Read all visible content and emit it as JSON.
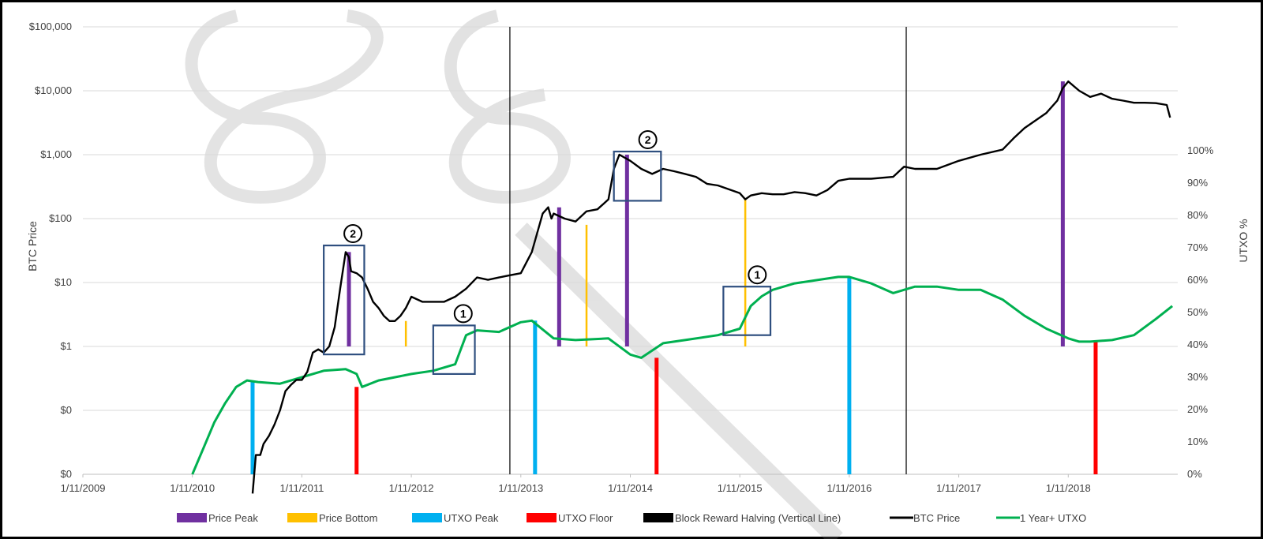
{
  "chart_data": {
    "type": "line",
    "left_axis": {
      "label": "BTC Price",
      "scale": "log",
      "tick_labels": [
        "$0",
        "$0",
        "$1",
        "$10",
        "$100",
        "$1,000",
        "$10,000",
        "$100,000"
      ],
      "range_log10": [
        -2,
        5
      ]
    },
    "right_axis": {
      "label": "UTXO %",
      "tick_labels": [
        "0%",
        "10%",
        "20%",
        "30%",
        "40%",
        "50%",
        "60%",
        "70%",
        "80%",
        "90%",
        "100%"
      ],
      "range": [
        0,
        100
      ]
    },
    "x_axis": {
      "tick_labels": [
        "1/11/2009",
        "1/11/2010",
        "1/11/2011",
        "1/11/2012",
        "1/11/2013",
        "1/11/2014",
        "1/11/2015",
        "1/11/2016",
        "1/11/2017",
        "1/11/2018"
      ],
      "range_year": [
        2009.0,
        2019.0
      ]
    },
    "series": [
      {
        "name": "BTC Price",
        "color": "#000000",
        "x": [
          2010.55,
          2010.58,
          2010.62,
          2010.65,
          2010.7,
          2010.75,
          2010.8,
          2010.85,
          2010.9,
          2010.95,
          2011.0,
          2011.05,
          2011.1,
          2011.15,
          2011.2,
          2011.25,
          2011.3,
          2011.35,
          2011.4,
          2011.43,
          2011.45,
          2011.5,
          2011.55,
          2011.6,
          2011.65,
          2011.7,
          2011.75,
          2011.8,
          2011.85,
          2011.9,
          2011.95,
          2012.0,
          2012.1,
          2012.2,
          2012.3,
          2012.4,
          2012.5,
          2012.6,
          2012.7,
          2012.8,
          2012.9,
          2013.0,
          2013.1,
          2013.2,
          2013.25,
          2013.28,
          2013.3,
          2013.4,
          2013.5,
          2013.6,
          2013.7,
          2013.8,
          2013.85,
          2013.9,
          2014.0,
          2014.1,
          2014.2,
          2014.3,
          2014.4,
          2014.5,
          2014.6,
          2014.7,
          2014.8,
          2015.0,
          2015.05,
          2015.1,
          2015.2,
          2015.3,
          2015.4,
          2015.5,
          2015.6,
          2015.7,
          2015.8,
          2015.9,
          2016.0,
          2016.2,
          2016.4,
          2016.5,
          2016.6,
          2016.8,
          2017.0,
          2017.2,
          2017.4,
          2017.5,
          2017.6,
          2017.8,
          2017.9,
          2017.95,
          2018.0,
          2018.1,
          2018.2,
          2018.3,
          2018.4,
          2018.5,
          2018.6,
          2018.7,
          2018.8,
          2018.9,
          2018.93
        ],
        "y": [
          0.005,
          0.02,
          0.02,
          0.03,
          0.04,
          0.06,
          0.1,
          0.2,
          0.25,
          0.3,
          0.3,
          0.4,
          0.8,
          0.9,
          0.8,
          1.0,
          2.0,
          8.0,
          30.0,
          25.0,
          15.0,
          14.0,
          12.0,
          8.0,
          5.0,
          4.0,
          3.0,
          2.5,
          2.5,
          3.0,
          4.0,
          6.0,
          5.0,
          5.0,
          5.0,
          6.0,
          8.0,
          12.0,
          11.0,
          12.0,
          13.0,
          14.0,
          30.0,
          120.0,
          150.0,
          100.0,
          120.0,
          100.0,
          90.0,
          130.0,
          140.0,
          200.0,
          600.0,
          1000.0,
          800.0,
          600.0,
          500.0,
          600.0,
          550.0,
          500.0,
          450.0,
          350.0,
          330.0,
          250.0,
          200.0,
          230.0,
          250.0,
          240.0,
          240.0,
          260.0,
          250.0,
          230.0,
          280.0,
          390.0,
          420.0,
          420.0,
          450.0,
          650.0,
          600.0,
          600.0,
          800.0,
          1000.0,
          1200.0,
          1800.0,
          2600.0,
          4500.0,
          7000.0,
          11000.0,
          14000.0,
          10000.0,
          8000.0,
          9000.0,
          7500.0,
          7000.0,
          6500.0,
          6500.0,
          6400.0,
          6000.0,
          3800.0
        ]
      },
      {
        "name": "1 Year+ UTXO",
        "color": "#00B050",
        "x": [
          2010.0,
          2010.1,
          2010.2,
          2010.3,
          2010.4,
          2010.5,
          2010.6,
          2010.8,
          2011.0,
          2011.2,
          2011.4,
          2011.5,
          2011.55,
          2011.7,
          2012.0,
          2012.2,
          2012.4,
          2012.5,
          2012.6,
          2012.8,
          2013.0,
          2013.1,
          2013.3,
          2013.5,
          2013.8,
          2014.0,
          2014.1,
          2014.3,
          2014.5,
          2014.8,
          2015.0,
          2015.1,
          2015.2,
          2015.3,
          2015.5,
          2015.7,
          2015.9,
          2016.0,
          2016.2,
          2016.4,
          2016.6,
          2016.8,
          2017.0,
          2017.2,
          2017.4,
          2017.6,
          2017.8,
          2018.0,
          2018.1,
          2018.2,
          2018.4,
          2018.6,
          2018.8,
          2018.95
        ],
        "y": [
          0,
          8,
          16,
          22,
          27,
          29,
          28.5,
          28,
          30,
          32,
          32.5,
          31,
          27,
          29,
          31,
          32,
          34,
          43,
          44.5,
          44,
          47,
          47.5,
          42,
          41.5,
          42,
          37,
          36,
          40.5,
          41.5,
          43,
          45,
          52,
          55,
          57,
          59,
          60,
          61,
          61,
          59,
          56,
          58,
          58,
          57,
          57,
          54,
          49,
          45,
          42,
          41,
          41,
          41.5,
          43,
          48,
          52
        ]
      }
    ],
    "annotations": {
      "price_peak": {
        "x": [
          2011.43,
          2013.35,
          2013.97,
          2017.95
        ],
        "top_usd": [
          30.0,
          150.0,
          1000.0,
          14000.0
        ],
        "bottom_usd": 1
      },
      "price_bottom": {
        "x": [
          2011.95,
          2013.6,
          2015.05
        ],
        "top_usd": [
          2.5,
          80.0,
          200.0
        ],
        "bottom_usd": 1
      },
      "utxo_peak": {
        "x": [
          2010.55,
          2013.13,
          2016.0
        ],
        "top_pct": [
          29,
          47.5,
          61
        ]
      },
      "utxo_floor": {
        "x": [
          2011.5,
          2014.24,
          2018.25
        ],
        "top_pct": [
          27,
          36,
          41
        ]
      },
      "halving": {
        "x": [
          2012.9,
          2016.52
        ]
      },
      "boxes": [
        {
          "number": "2",
          "x_range": [
            2011.2,
            2011.57
          ],
          "usd_range": [
            0.75,
            38
          ]
        },
        {
          "number": "1",
          "x_range": [
            2012.2,
            2012.58
          ],
          "pct_range": [
            31,
            46
          ]
        },
        {
          "number": "2",
          "x_range": [
            2013.85,
            2014.28
          ],
          "usd_range": [
            190,
            1120
          ]
        },
        {
          "number": "1",
          "x_range": [
            2014.85,
            2015.28
          ],
          "pct_range": [
            43,
            58
          ]
        }
      ]
    },
    "legend": {
      "position": "bottom",
      "items": [
        {
          "label": "Price Peak",
          "color": "#7030A0"
        },
        {
          "label": "Price Bottom",
          "color": "#FFC000"
        },
        {
          "label": "UTXO Peak",
          "color": "#00B0F0"
        },
        {
          "label": "UTXO Floor",
          "color": "#FF0000"
        },
        {
          "label": "Block Reward Halving (Vertical Line)",
          "color": "#000000"
        },
        {
          "label": "BTC Price",
          "color": "#000000",
          "line": true
        },
        {
          "label": "1 Year+ UTXO",
          "color": "#00B050",
          "line": true
        }
      ]
    },
    "grid": true
  }
}
